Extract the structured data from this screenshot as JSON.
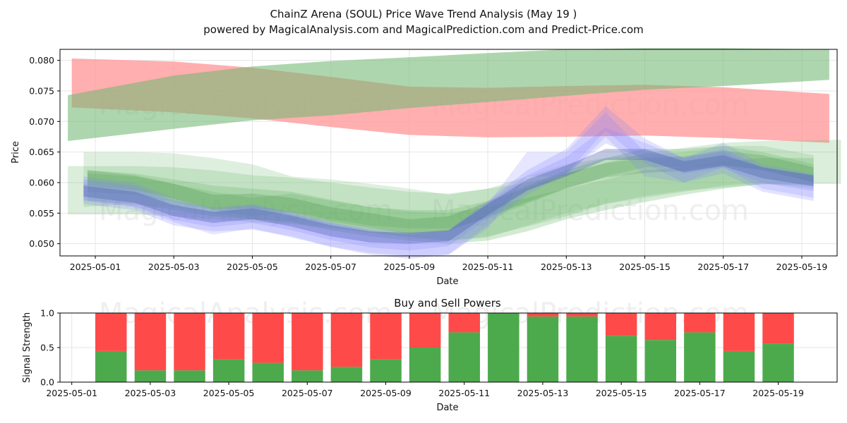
{
  "chart_data": [
    {
      "type": "area",
      "title": "ChainZ Arena (SOUL) Price Wave Trend Analysis (May 19 )",
      "subtitle": "powered by MagicalAnalysis.com and MagicalPrediction.com and Predict-Price.com",
      "xlabel": "Date",
      "ylabel": "Price",
      "ylim": [
        0.048,
        0.0818
      ],
      "xlim_days": [
        -0.9,
        18.9
      ],
      "x_ticks": [
        "2025-05-01",
        "2025-05-03",
        "2025-05-05",
        "2025-05-07",
        "2025-05-09",
        "2025-05-11",
        "2025-05-13",
        "2025-05-15",
        "2025-05-17",
        "2025-05-19"
      ],
      "x_tick_days": [
        0,
        2,
        4,
        6,
        8,
        10,
        12,
        14,
        16,
        18
      ],
      "y_ticks": [
        "0.050",
        "0.055",
        "0.060",
        "0.065",
        "0.070",
        "0.075",
        "0.080"
      ],
      "y_tick_values": [
        0.05,
        0.055,
        0.06,
        0.065,
        0.07,
        0.075,
        0.08
      ],
      "watermarks": [
        "MagicalAnalysis.com",
        "MagicalPrediction.com"
      ],
      "bands": [
        {
          "name": "long-term bearish band",
          "color": "#ff9999",
          "opacity": 0.78,
          "x": [
            -0.6,
            2,
            4,
            6,
            8,
            10,
            12,
            14,
            16,
            18.7
          ],
          "upper": [
            0.0803,
            0.0798,
            0.0788,
            0.0773,
            0.0757,
            0.0755,
            0.0758,
            0.076,
            0.0756,
            0.0745
          ],
          "lower": [
            0.0723,
            0.0715,
            0.0705,
            0.0691,
            0.0678,
            0.0674,
            0.0675,
            0.0677,
            0.0673,
            0.0665
          ]
        },
        {
          "name": "long-term bullish band",
          "color": "#74b874",
          "opacity": 0.58,
          "x": [
            -0.7,
            2,
            4,
            6,
            8,
            10,
            12,
            14,
            16,
            18.7
          ],
          "upper": [
            0.0743,
            0.0775,
            0.079,
            0.0799,
            0.0805,
            0.0812,
            0.0818,
            0.082,
            0.082,
            0.0818
          ],
          "lower": [
            0.0668,
            0.0688,
            0.0702,
            0.071,
            0.0722,
            0.0732,
            0.0742,
            0.0752,
            0.0758,
            0.0768
          ]
        },
        {
          "name": "wave band 1",
          "color": "#6fb86f",
          "opacity": 0.22,
          "x": [
            -0.3,
            1,
            2,
            3,
            4,
            5,
            6,
            7,
            8,
            9,
            10,
            11,
            12,
            13,
            14,
            15,
            16,
            17,
            18.3
          ],
          "upper": [
            0.065,
            0.065,
            0.0648,
            0.064,
            0.063,
            0.061,
            0.0605,
            0.0598,
            0.059,
            0.058,
            0.059,
            0.061,
            0.063,
            0.064,
            0.0645,
            0.065,
            0.066,
            0.066,
            0.0645
          ],
          "lower": [
            0.056,
            0.0565,
            0.056,
            0.055,
            0.054,
            0.0535,
            0.0528,
            0.052,
            0.0512,
            0.0505,
            0.051,
            0.053,
            0.055,
            0.0565,
            0.0575,
            0.0585,
            0.0595,
            0.06,
            0.059
          ]
        },
        {
          "name": "wave band 2",
          "color": "#6fb86f",
          "opacity": 0.25,
          "x": [
            -0.7,
            1,
            2,
            3,
            4,
            5,
            6,
            7,
            8,
            9,
            10,
            11,
            12,
            13,
            14,
            15,
            16,
            17,
            19
          ],
          "upper": [
            0.0627,
            0.0627,
            0.0625,
            0.062,
            0.0612,
            0.0608,
            0.06,
            0.0592,
            0.0585,
            0.0582,
            0.059,
            0.06,
            0.0615,
            0.0632,
            0.0648,
            0.0657,
            0.0665,
            0.0668,
            0.067
          ],
          "lower": [
            0.0548,
            0.0548,
            0.0545,
            0.054,
            0.0535,
            0.0532,
            0.0525,
            0.0518,
            0.051,
            0.0505,
            0.0512,
            0.0528,
            0.0545,
            0.0565,
            0.0578,
            0.0587,
            0.0592,
            0.0597,
            0.0598
          ]
        },
        {
          "name": "wave band 3",
          "color": "#6fb86f",
          "opacity": 0.3,
          "x": [
            -0.2,
            1,
            2,
            3,
            4,
            5,
            6,
            7,
            8,
            9,
            10,
            11,
            12,
            13,
            14,
            15,
            16,
            17,
            18.3
          ],
          "upper": [
            0.062,
            0.0615,
            0.0605,
            0.0595,
            0.059,
            0.0585,
            0.0572,
            0.056,
            0.0553,
            0.055,
            0.056,
            0.0575,
            0.059,
            0.0605,
            0.062,
            0.0625,
            0.0635,
            0.064,
            0.064
          ],
          "lower": [
            0.057,
            0.0565,
            0.0555,
            0.0545,
            0.054,
            0.0535,
            0.0522,
            0.0512,
            0.0505,
            0.05,
            0.0505,
            0.052,
            0.054,
            0.0555,
            0.0568,
            0.058,
            0.059,
            0.0598,
            0.0595
          ]
        },
        {
          "name": "wave band 4",
          "color": "#6fb86f",
          "opacity": 0.3,
          "x": [
            -0.2,
            1,
            2,
            3,
            4,
            5,
            6,
            7,
            8,
            9,
            10,
            11,
            12,
            13,
            14,
            15,
            16,
            17,
            18.3
          ],
          "upper": [
            0.0615,
            0.061,
            0.0598,
            0.0585,
            0.0575,
            0.0582,
            0.057,
            0.056,
            0.0555,
            0.0555,
            0.057,
            0.0595,
            0.062,
            0.064,
            0.0655,
            0.0655,
            0.066,
            0.065,
            0.063
          ],
          "lower": [
            0.0585,
            0.058,
            0.0568,
            0.0555,
            0.0545,
            0.0552,
            0.054,
            0.053,
            0.0525,
            0.0525,
            0.054,
            0.0565,
            0.059,
            0.061,
            0.0625,
            0.0625,
            0.063,
            0.062,
            0.06
          ]
        },
        {
          "name": "wave band 5",
          "color": "#3a8a3a",
          "opacity": 0.22,
          "x": [
            -0.2,
            1,
            2,
            3,
            4,
            5,
            6,
            7,
            8,
            9,
            10,
            11,
            12,
            13,
            14,
            15,
            16,
            17,
            18.3
          ],
          "upper": [
            0.062,
            0.0612,
            0.0598,
            0.058,
            0.0582,
            0.0575,
            0.056,
            0.055,
            0.054,
            0.0545,
            0.0568,
            0.0592,
            0.0615,
            0.0632,
            0.064,
            0.0643,
            0.0652,
            0.0645,
            0.0625
          ],
          "lower": [
            0.0596,
            0.0588,
            0.0574,
            0.0556,
            0.0558,
            0.0551,
            0.0536,
            0.0526,
            0.0516,
            0.0521,
            0.0544,
            0.0568,
            0.0591,
            0.0608,
            0.0616,
            0.0619,
            0.0628,
            0.0621,
            0.0601
          ]
        },
        {
          "name": "wave band 6",
          "color": "#8080ff",
          "opacity": 0.2,
          "x": [
            -0.3,
            1,
            2,
            3,
            4,
            5,
            6,
            7,
            8,
            9,
            10,
            11,
            12,
            13,
            14,
            15,
            16,
            17,
            18.3
          ],
          "upper": [
            0.061,
            0.06,
            0.0575,
            0.0555,
            0.0565,
            0.055,
            0.0535,
            0.0525,
            0.0518,
            0.052,
            0.0565,
            0.065,
            0.065,
            0.0715,
            0.065,
            0.064,
            0.0665,
            0.063,
            0.0615
          ],
          "lower": [
            0.057,
            0.056,
            0.0535,
            0.0515,
            0.0525,
            0.051,
            0.0495,
            0.0485,
            0.048,
            0.0482,
            0.0525,
            0.061,
            0.061,
            0.0675,
            0.061,
            0.06,
            0.0625,
            0.059,
            0.0575
          ]
        },
        {
          "name": "wave band 7",
          "color": "#8080ff",
          "opacity": 0.22,
          "x": [
            -0.3,
            1,
            2,
            3,
            4,
            5,
            6,
            7,
            8,
            9,
            10,
            11,
            12,
            13,
            14,
            15,
            16,
            17,
            18.3
          ],
          "upper": [
            0.0605,
            0.0595,
            0.057,
            0.056,
            0.0563,
            0.0552,
            0.0535,
            0.0522,
            0.0515,
            0.0522,
            0.057,
            0.062,
            0.0655,
            0.0725,
            0.0672,
            0.064,
            0.0655,
            0.0625,
            0.061
          ],
          "lower": [
            0.0565,
            0.0555,
            0.053,
            0.052,
            0.0523,
            0.0512,
            0.0495,
            0.0482,
            0.0475,
            0.0482,
            0.053,
            0.058,
            0.0615,
            0.0685,
            0.0632,
            0.06,
            0.0615,
            0.0585,
            0.057
          ]
        },
        {
          "name": "wave band 8",
          "color": "#8080ff",
          "opacity": 0.22,
          "x": [
            -0.3,
            1,
            2,
            3,
            4,
            5,
            6,
            7,
            8,
            9,
            10,
            11,
            12,
            13,
            14,
            15,
            16,
            17,
            18.3
          ],
          "upper": [
            0.0598,
            0.0588,
            0.0565,
            0.0553,
            0.056,
            0.0548,
            0.0532,
            0.052,
            0.0515,
            0.0522,
            0.0568,
            0.0612,
            0.0642,
            0.069,
            0.0665,
            0.064,
            0.065,
            0.0625,
            0.0612
          ],
          "lower": [
            0.0572,
            0.0562,
            0.0539,
            0.0527,
            0.0534,
            0.0522,
            0.0506,
            0.0494,
            0.0489,
            0.0496,
            0.0542,
            0.0586,
            0.0616,
            0.0664,
            0.0639,
            0.0614,
            0.0624,
            0.0599,
            0.0586
          ]
        },
        {
          "name": "wave band 9",
          "color": "#4a5ea8",
          "opacity": 0.35,
          "x": [
            -0.3,
            1,
            2,
            3,
            4,
            5,
            6,
            7,
            8,
            9,
            10,
            11,
            12,
            13,
            14,
            15,
            16,
            17,
            18.3
          ],
          "upper": [
            0.0595,
            0.0585,
            0.0563,
            0.0552,
            0.0558,
            0.0546,
            0.053,
            0.052,
            0.0518,
            0.0522,
            0.0565,
            0.0605,
            0.0628,
            0.0655,
            0.0655,
            0.0635,
            0.0645,
            0.0625,
            0.0612
          ],
          "lower": [
            0.0577,
            0.0567,
            0.0545,
            0.0534,
            0.054,
            0.0528,
            0.0512,
            0.0502,
            0.05,
            0.0504,
            0.0547,
            0.0587,
            0.061,
            0.0637,
            0.0637,
            0.0617,
            0.0627,
            0.0607,
            0.0594
          ]
        }
      ]
    },
    {
      "type": "bar",
      "title": "Buy and Sell Powers",
      "xlabel": "Date",
      "ylabel": "Signal Strength",
      "ylim": [
        0,
        1
      ],
      "xlim_days": [
        -0.3,
        19.5
      ],
      "x_ticks": [
        "2025-05-01",
        "2025-05-03",
        "2025-05-05",
        "2025-05-07",
        "2025-05-09",
        "2025-05-11",
        "2025-05-13",
        "2025-05-15",
        "2025-05-17",
        "2025-05-19"
      ],
      "x_tick_days": [
        0,
        2,
        4,
        6,
        8,
        10,
        12,
        14,
        16,
        18
      ],
      "y_ticks": [
        "0.0",
        "0.5",
        "1.0"
      ],
      "y_tick_values": [
        0,
        0.5,
        1.0
      ],
      "watermarks": [
        "MagicalAnalysis.com",
        "MagicalPrediction.com"
      ],
      "categories": [
        "2025-05-02",
        "2025-05-03",
        "2025-05-04",
        "2025-05-05",
        "2025-05-06",
        "2025-05-07",
        "2025-05-08",
        "2025-05-09",
        "2025-05-10",
        "2025-05-11",
        "2025-05-12",
        "2025-05-13",
        "2025-05-14",
        "2025-05-15",
        "2025-05-16",
        "2025-05-17",
        "2025-05-18",
        "2025-05-19"
      ],
      "category_days": [
        1,
        2,
        3,
        4,
        5,
        6,
        7,
        8,
        9,
        10,
        11,
        12,
        13,
        14,
        15,
        16,
        17,
        18
      ],
      "series": [
        {
          "name": "Buy Power",
          "color": "#4caa4c",
          "values": [
            0.45,
            0.17,
            0.17,
            0.33,
            0.28,
            0.17,
            0.22,
            0.33,
            0.5,
            0.72,
            1.0,
            0.95,
            0.95,
            0.67,
            0.61,
            0.72,
            0.45,
            0.56
          ]
        },
        {
          "name": "Sell Power",
          "color": "#ff4a4a",
          "values": [
            0.55,
            0.83,
            0.83,
            0.67,
            0.72,
            0.83,
            0.78,
            0.67,
            0.5,
            0.28,
            0.0,
            0.05,
            0.05,
            0.33,
            0.39,
            0.28,
            0.55,
            0.44
          ]
        }
      ]
    }
  ]
}
